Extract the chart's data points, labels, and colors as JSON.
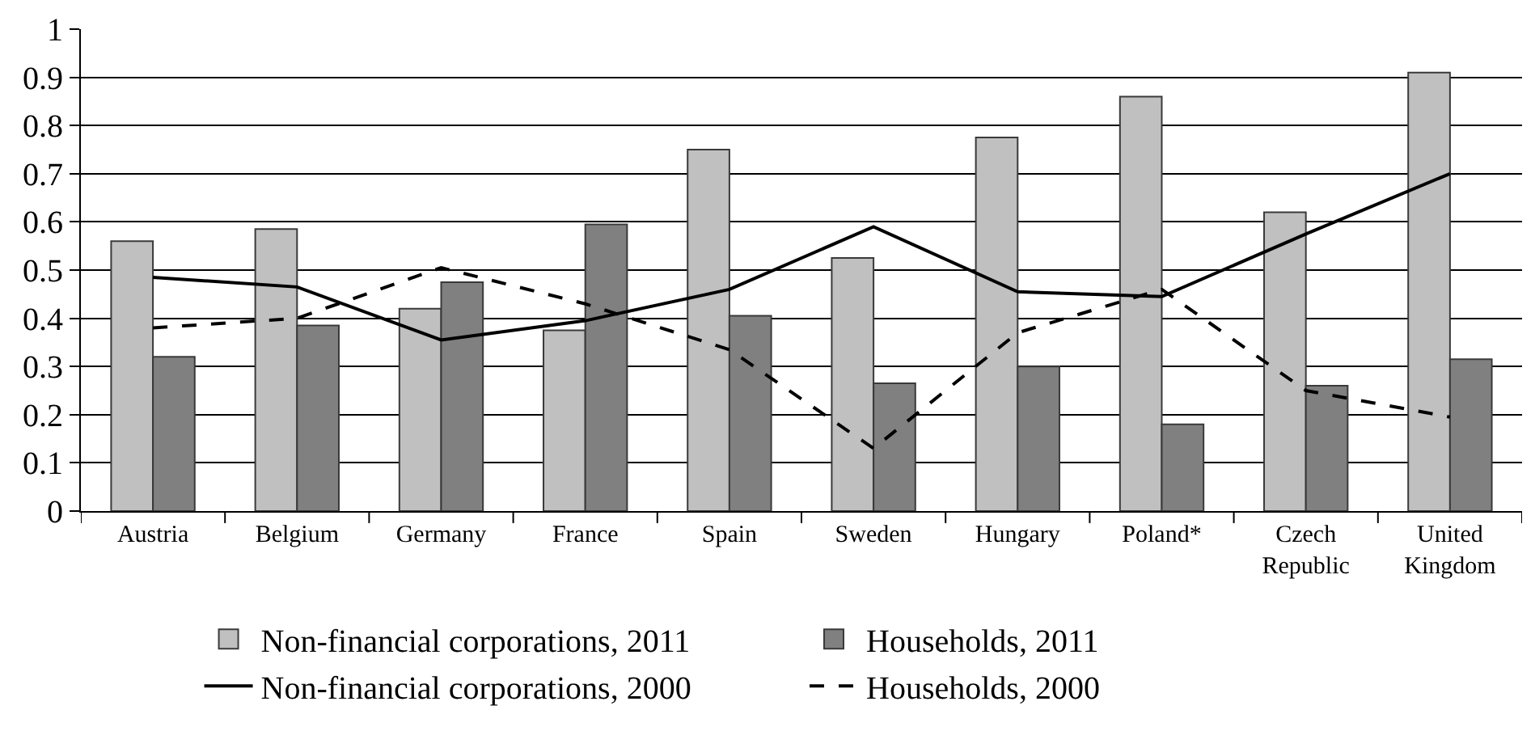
{
  "chart_data": {
    "type": "bar",
    "categories": [
      "Austria",
      "Belgium",
      "Germany",
      "France",
      "Spain",
      "Sweden",
      "Hungary",
      "Poland*",
      "Czech\nRepublic",
      "United\nKingdom"
    ],
    "series": [
      {
        "name": "Non-financial corporations, 2011",
        "color": "#c0c0c0",
        "values": [
          0.56,
          0.585,
          0.42,
          0.375,
          0.75,
          0.525,
          0.775,
          0.86,
          0.62,
          0.91
        ]
      },
      {
        "name": "Households, 2011",
        "color": "#808080",
        "values": [
          0.32,
          0.385,
          0.475,
          0.595,
          0.405,
          0.265,
          0.3,
          0.18,
          0.26,
          0.315
        ]
      },
      {
        "name": "Non-financial corporations, 2000",
        "type": "line",
        "color": "#000000",
        "line_style": "solid",
        "values": [
          0.485,
          0.465,
          0.355,
          0.395,
          0.46,
          0.59,
          0.455,
          0.445,
          0.575,
          0.7
        ]
      },
      {
        "name": "Households, 2000",
        "type": "line",
        "color": "#000000",
        "line_style": "dashed",
        "values": [
          0.38,
          0.4,
          0.505,
          0.43,
          0.335,
          0.13,
          0.37,
          0.46,
          0.25,
          0.195
        ]
      }
    ],
    "ylim": [
      0,
      1
    ],
    "yticks": [
      0,
      0.1,
      0.2,
      0.3,
      0.4,
      0.5,
      0.6,
      0.7,
      0.8,
      0.9,
      1
    ],
    "grid": "y",
    "legend": "bottom",
    "marker": "none"
  }
}
